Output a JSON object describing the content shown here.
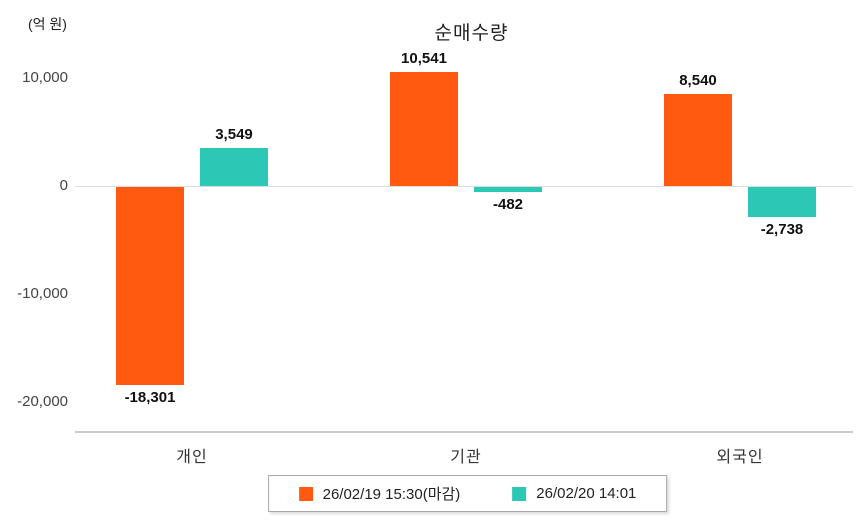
{
  "chart_data": {
    "type": "bar",
    "title": "순매수량",
    "ylabel": "(억 원)",
    "categories": [
      "개인",
      "기관",
      "외국인"
    ],
    "series": [
      {
        "name": "26/02/19 15:30(마감)",
        "color": "#FF5A0F",
        "values": [
          -18301,
          10541,
          8540
        ]
      },
      {
        "name": "26/02/20 14:01",
        "color": "#2BC8B6",
        "values": [
          3549,
          -482,
          -2738
        ]
      }
    ],
    "yticks": [
      10000,
      0,
      -10000,
      -20000
    ],
    "ylim": [
      -22700,
      11600
    ],
    "grid": false,
    "legend_position": "bottom"
  }
}
